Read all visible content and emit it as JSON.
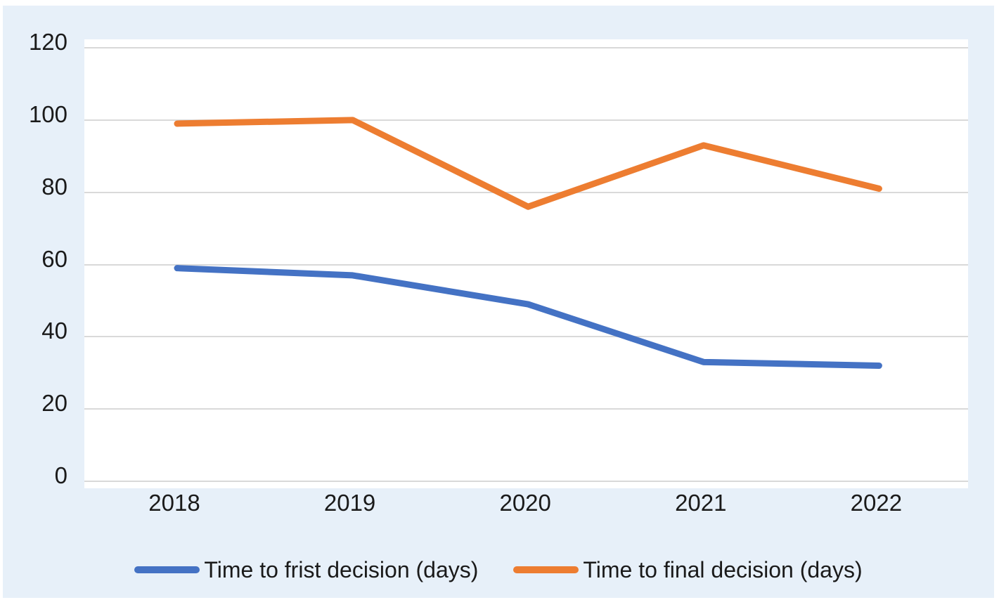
{
  "chart_data": {
    "type": "line",
    "title": "",
    "xlabel": "",
    "ylabel": "",
    "categories": [
      "2018",
      "2019",
      "2020",
      "2021",
      "2022"
    ],
    "series": [
      {
        "name": "Time to frist decision (days)",
        "color": "#4472c4",
        "values": [
          59,
          57,
          49,
          33,
          32
        ]
      },
      {
        "name": "Time to final decision (days)",
        "color": "#ed7d31",
        "values": [
          99,
          100,
          76,
          93,
          81
        ]
      }
    ],
    "ylim": [
      0,
      120
    ],
    "yticks": [
      0,
      20,
      40,
      60,
      80,
      100,
      120
    ],
    "grid": "horizontal-on",
    "legend_position": "bottom",
    "colors": {
      "panel_background": "#e7f0f9",
      "plot_background": "#ffffff",
      "gridline": "#d9d9d9",
      "text": "#1a1a1a"
    }
  }
}
